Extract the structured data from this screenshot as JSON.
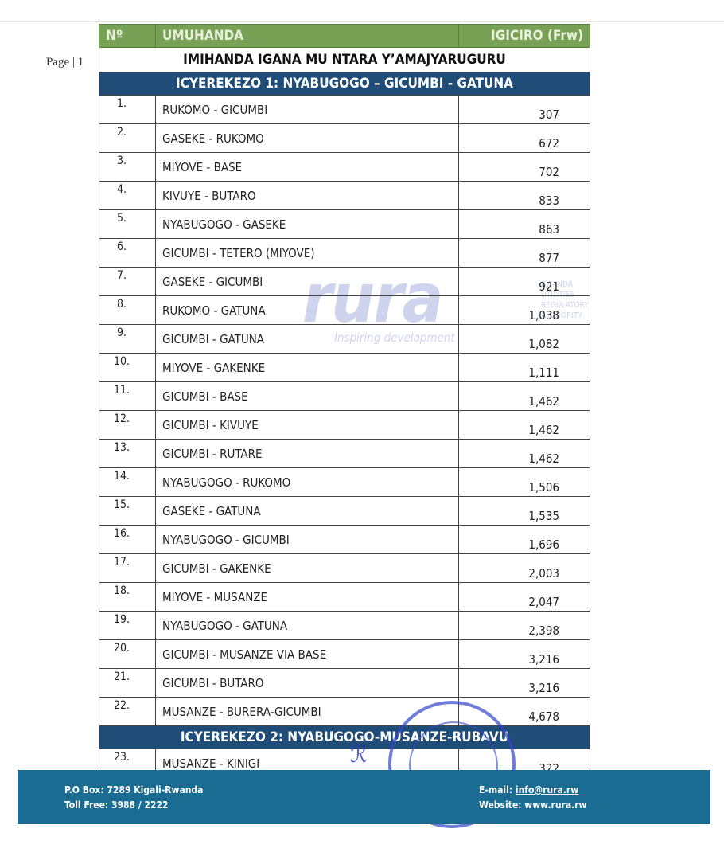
{
  "page_label": "Page | 1",
  "table": {
    "headers": [
      "Nº",
      "UMUHANDA",
      "IGICIRO (Frw)"
    ],
    "title": "IMIHANDA IGANA MU NTARA Y’AMAJYARUGURU",
    "sections": [
      {
        "title": "ICYEREKEZO 1: NYABUGOGO – GICUMBI - GATUNA",
        "rows": [
          {
            "n": "1.",
            "route": "RUKOMO - GICUMBI",
            "price": "307"
          },
          {
            "n": "2.",
            "route": "GASEKE - RUKOMO",
            "price": "672"
          },
          {
            "n": "3.",
            "route": "MIYOVE - BASE",
            "price": "702"
          },
          {
            "n": "4.",
            "route": "KIVUYE - BUTARO",
            "price": "833"
          },
          {
            "n": "5.",
            "route": "NYABUGOGO - GASEKE",
            "price": "863"
          },
          {
            "n": "6.",
            "route": "GICUMBI - TETERO (MIYOVE)",
            "price": "877"
          },
          {
            "n": "7.",
            "route": "GASEKE - GICUMBI",
            "price": "921"
          },
          {
            "n": "8.",
            "route": "RUKOMO - GATUNA",
            "price": "1,038"
          },
          {
            "n": "9.",
            "route": "GICUMBI - GATUNA",
            "price": "1,082"
          },
          {
            "n": "10.",
            "route": "MIYOVE - GAKENKE",
            "price": "1,111"
          },
          {
            "n": "11.",
            "route": "GICUMBI - BASE",
            "price": "1,462"
          },
          {
            "n": "12.",
            "route": "GICUMBI - KIVUYE",
            "price": "1,462"
          },
          {
            "n": "13.",
            "route": "GICUMBI - RUTARE",
            "price": "1,462"
          },
          {
            "n": "14.",
            "route": "NYABUGOGO - RUKOMO",
            "price": "1,506"
          },
          {
            "n": "15.",
            "route": "GASEKE - GATUNA",
            "price": "1,535"
          },
          {
            "n": "16.",
            "route": "NYABUGOGO - GICUMBI",
            "price": "1,696"
          },
          {
            "n": "17.",
            "route": "GICUMBI - GAKENKE",
            "price": "2,003"
          },
          {
            "n": "18.",
            "route": "MIYOVE - MUSANZE",
            "price": "2,047"
          },
          {
            "n": "19.",
            "route": "NYABUGOGO - GATUNA",
            "price": "2,398"
          },
          {
            "n": "20.",
            "route": "GICUMBI - MUSANZE VIA BASE",
            "price": "3,216"
          },
          {
            "n": "21.",
            "route": "GICUMBI - BUTARO",
            "price": "3,216"
          },
          {
            "n": "22.",
            "route": "MUSANZE - BURERA-GICUMBI",
            "price": "4,678"
          }
        ]
      },
      {
        "title": "ICYEREKEZO 2: NYABUGOGO-MUSANZE-RUBAVU",
        "rows": [
          {
            "n": "23.",
            "route": "MUSANZE - KINIGI",
            "price": "322"
          }
        ]
      }
    ]
  },
  "watermark": {
    "logo": "rura",
    "tagline": "Inspiring development",
    "side": "RWANDA UTILITIES REGULATORY AUTHORITY"
  },
  "stamp_text": "RWANDA UTILITIES REGULATORY AUTHORITY",
  "footer": {
    "po_box": "P.O Box: 7289 Kigali-Rwanda",
    "toll_free": "Toll Free: 3988  / 2222",
    "email_label": "E-mail: ",
    "email": "info@rura.rw",
    "website_label": "Website: ",
    "website": "www.rura.rw"
  },
  "colors": {
    "header_green": "#78a155",
    "section_blue": "#1f4d78",
    "footer_blue": "#1a6c93"
  }
}
